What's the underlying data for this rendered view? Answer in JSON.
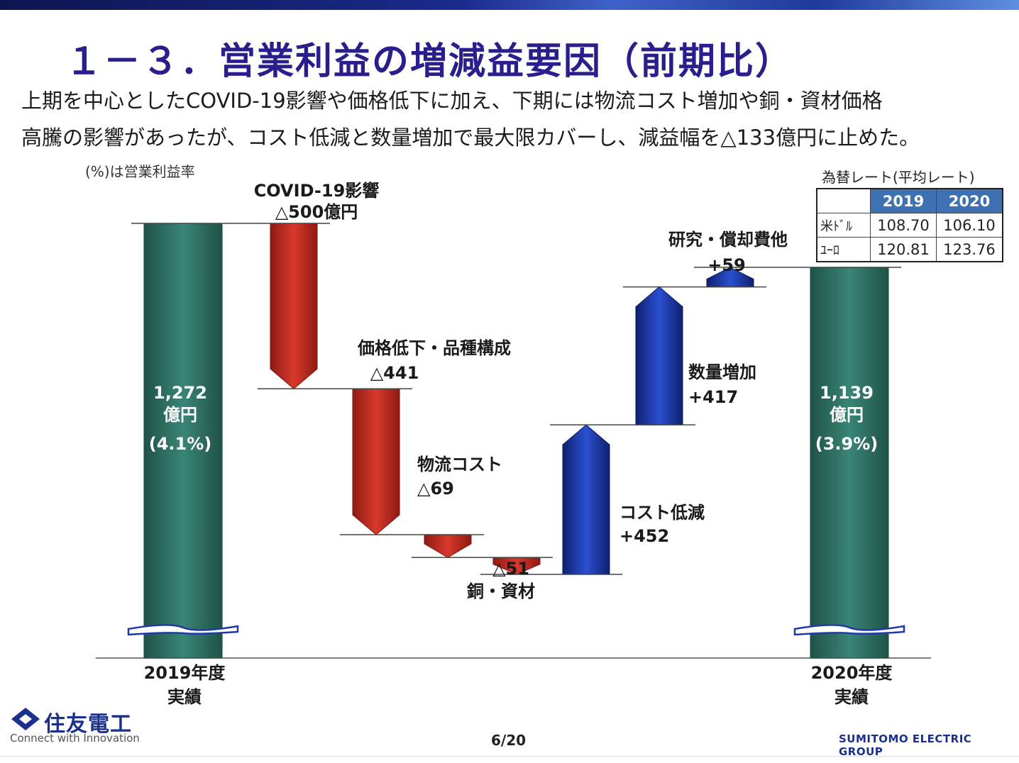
{
  "slide": {
    "title": "１－３．営業利益の増減益要因（前期比）",
    "subtitle_line1": "上期を中心としたCOVID-19影響や価格低下に加え、下期には物流コスト増加や銅・資材価格",
    "subtitle_line2": "高騰の影響があったが、コスト低減と数量増加で最大限カバーし、減益幅を△133億円に止めた。",
    "note": "(%)は営業利益率",
    "page": "6/20"
  },
  "fx_table": {
    "title": "為替レート(平均レート)",
    "headers": [
      "2019",
      "2020"
    ],
    "rows": [
      {
        "label": "米ﾄﾞﾙ",
        "y2019": "108.70",
        "y2020": "106.10"
      },
      {
        "label": "ﾕｰﾛ",
        "y2019": "120.81",
        "y2020": "123.76"
      }
    ]
  },
  "chart_data": {
    "type": "bar",
    "subtype": "waterfall",
    "unit": "億円",
    "categories": [
      "2019年度実績",
      "COVID-19影響",
      "価格低下・品種構成",
      "物流コスト",
      "銅・資材",
      "コスト低減",
      "数量増加",
      "研究・償却費他",
      "2020年度実績"
    ],
    "values": [
      1272,
      -500,
      -441,
      -69,
      -51,
      452,
      417,
      59,
      1139
    ],
    "kinds": [
      "total",
      "delta",
      "delta",
      "delta",
      "delta",
      "delta",
      "delta",
      "delta",
      "total"
    ],
    "labels": [
      {
        "line1": "1,272",
        "line2": "億円",
        "line3": "(4.1%)"
      },
      {
        "line1": "COVID-19影響",
        "line2": "△500億円"
      },
      {
        "line1": "価格低下・品種構成",
        "line2": "△441"
      },
      {
        "line1": "物流コスト",
        "line2": "△69"
      },
      {
        "line1": "△51",
        "line2": "銅・資材"
      },
      {
        "line1": "コスト低減",
        "line2": "+452"
      },
      {
        "line1": "数量増加",
        "line2": "+417"
      },
      {
        "line1": "研究・償却費他",
        "line2": "+59"
      },
      {
        "line1": "1,139",
        "line2": "億円",
        "line3": "(3.9%)"
      }
    ],
    "xlabels": [
      {
        "line1": "2019年度",
        "line2": "実績"
      },
      {
        "line1": "2020年度",
        "line2": "実績"
      }
    ],
    "colors": {
      "total": "#2e6e63",
      "decrease": "#c0281e",
      "increase": "#1f3aa8"
    }
  },
  "footer": {
    "company": "住友電工",
    "tagline": "Connect with Innovation",
    "group": "SUMITOMO ELECTRIC GROUP"
  }
}
